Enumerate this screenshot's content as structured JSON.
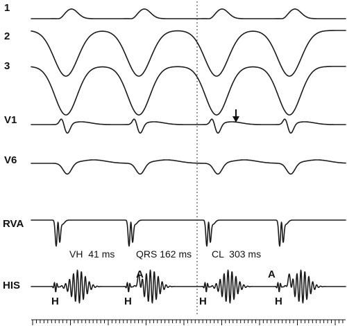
{
  "leads": [
    {
      "key": "lead1",
      "label": "1"
    },
    {
      "key": "lead2",
      "label": "2"
    },
    {
      "key": "lead3",
      "label": "3"
    },
    {
      "key": "v1",
      "label": "V1"
    },
    {
      "key": "v6",
      "label": "V6"
    },
    {
      "key": "rva",
      "label": "RVA"
    },
    {
      "key": "his",
      "label": "HIS"
    }
  ],
  "measurements": {
    "vh": "VH  41 ms",
    "qrs": "QRS 162 ms",
    "cl": "CL  303 ms"
  },
  "markers": {
    "h": "H",
    "a": "A"
  },
  "annotations": {
    "arrow": "down-arrow-icon",
    "reference_line": "dotted vertical reference line"
  },
  "colors": {
    "trace": "#1a1a1a",
    "background": "#ffffff"
  }
}
